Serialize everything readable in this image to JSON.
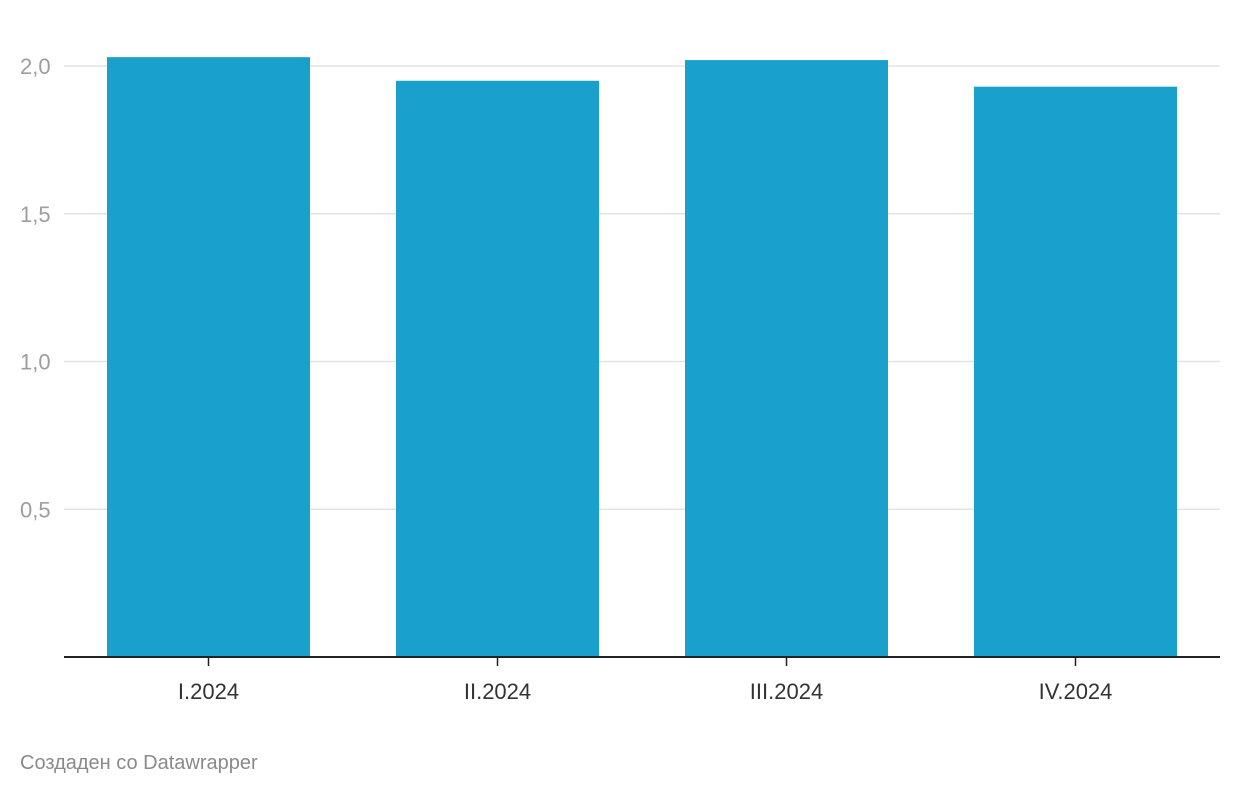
{
  "chart_data": {
    "type": "bar",
    "categories": [
      "I.2024",
      "II.2024",
      "III.2024",
      "IV.2024"
    ],
    "values": [
      2.03,
      1.95,
      2.02,
      1.93
    ],
    "title": "",
    "xlabel": "",
    "ylabel": "",
    "ylim": [
      0,
      2.0
    ],
    "yticks": [
      0.5,
      1.0,
      1.5,
      2.0
    ],
    "ytick_labels": [
      "0,5",
      "1,0",
      "1,5",
      "2,0"
    ],
    "grid": true,
    "bar_color": "#19a0cc"
  },
  "footer": {
    "credit": "Создаден со Datawrapper"
  }
}
